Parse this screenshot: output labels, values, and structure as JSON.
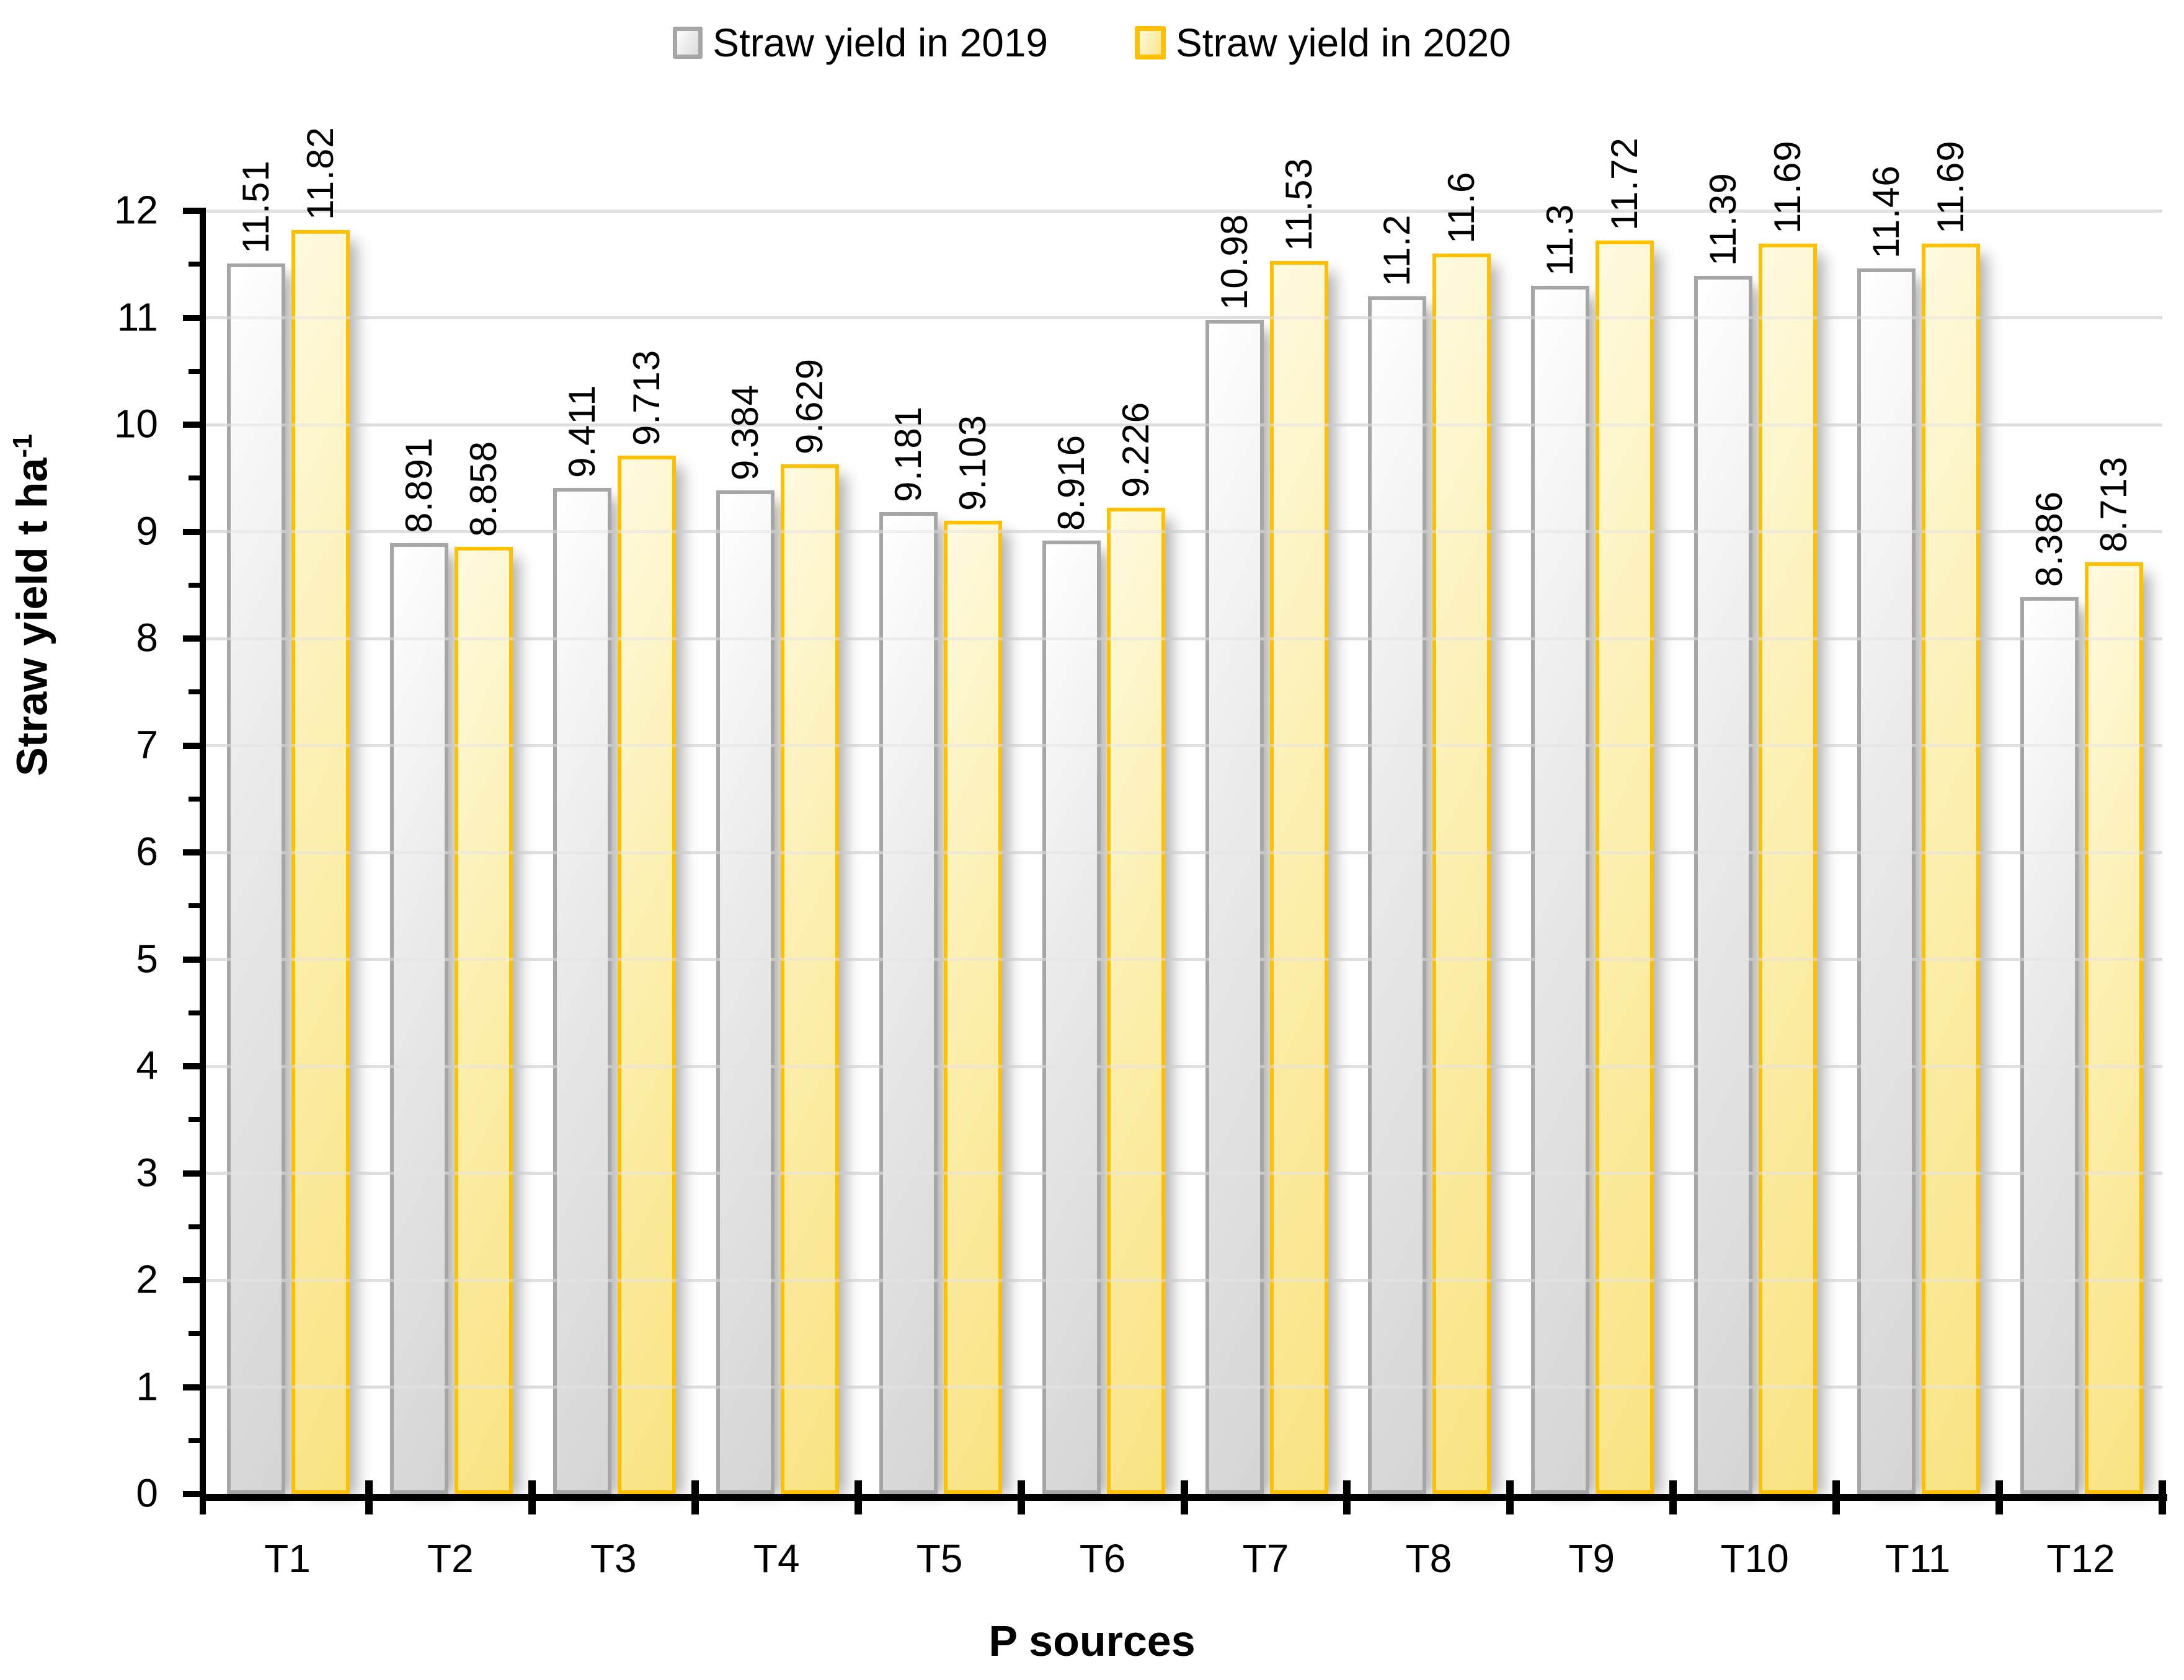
{
  "legend": {
    "items": [
      {
        "label": "Straw yield in 2019"
      },
      {
        "label": "Straw yield in 2020"
      }
    ]
  },
  "y_axis": {
    "title_main": "Straw yield t ha",
    "title_sup": "-1",
    "min": 0,
    "max": 12,
    "major_step": 1,
    "minor_step": 0.5,
    "tick_labels": [
      "0",
      "1",
      "2",
      "3",
      "4",
      "5",
      "6",
      "7",
      "8",
      "9",
      "10",
      "11",
      "12"
    ]
  },
  "x_axis": {
    "title": "P sources"
  },
  "colors": {
    "gridline": "#D9D9D9",
    "axis": "#000000",
    "text": "#000000",
    "series_2019_fill": "#E9E9E9",
    "series_2019_border": "#A6A6A6",
    "series_2020_fill": "#FCEFB0",
    "series_2020_border": "#FFC000"
  },
  "chart_data": {
    "type": "bar",
    "title": "",
    "xlabel": "P sources",
    "ylabel": "Straw yield t ha-1",
    "ylim": [
      0,
      12
    ],
    "grid": "horizontal major gridlines on, minor y ticks every 0.5",
    "legend_position": "top-center",
    "categories": [
      "T1",
      "T2",
      "T3",
      "T4",
      "T5",
      "T6",
      "T7",
      "T8",
      "T9",
      "T10",
      "T11",
      "T12"
    ],
    "series": [
      {
        "name": "Straw yield in 2019",
        "values": [
          11.51,
          8.891,
          9.411,
          9.384,
          9.181,
          8.916,
          10.98,
          11.2,
          11.3,
          11.39,
          11.46,
          8.386
        ],
        "labels": [
          "11.51",
          "8.891",
          "9.411",
          "9.384",
          "9.181",
          "8.916",
          "10.98",
          "11.2",
          "11.3",
          "11.39",
          "11.46",
          "8.386"
        ]
      },
      {
        "name": "Straw yield in 2020",
        "values": [
          11.82,
          8.858,
          9.713,
          9.629,
          9.103,
          9.226,
          11.53,
          11.6,
          11.72,
          11.69,
          11.69,
          8.713
        ],
        "labels": [
          "11.82",
          "8.858",
          "9.713",
          "9.629",
          "9.103",
          "9.226",
          "11.53",
          "11.6",
          "11.72",
          "11.69",
          "11.69",
          "8.713"
        ]
      }
    ]
  }
}
